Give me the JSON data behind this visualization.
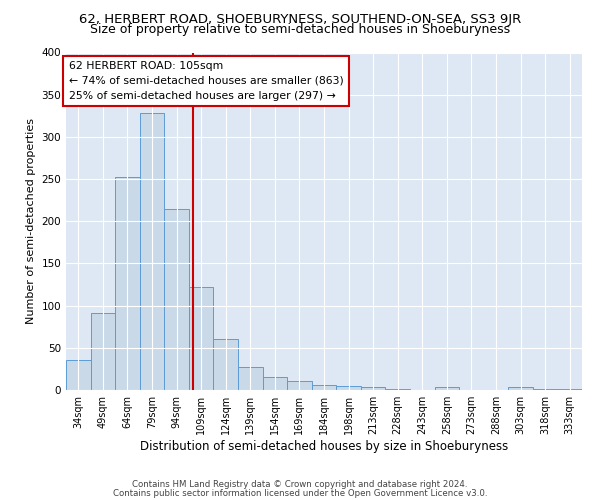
{
  "title_line1": "62, HERBERT ROAD, SHOEBURYNESS, SOUTHEND-ON-SEA, SS3 9JR",
  "title_line2": "Size of property relative to semi-detached houses in Shoeburyness",
  "xlabel": "Distribution of semi-detached houses by size in Shoeburyness",
  "ylabel": "Number of semi-detached properties",
  "footnote1": "Contains HM Land Registry data © Crown copyright and database right 2024.",
  "footnote2": "Contains public sector information licensed under the Open Government Licence v3.0.",
  "annotation_title": "62 HERBERT ROAD: 105sqm",
  "annotation_line2": "← 74% of semi-detached houses are smaller (863)",
  "annotation_line3": "25% of semi-detached houses are larger (297) →",
  "bar_labels": [
    "34sqm",
    "49sqm",
    "64sqm",
    "79sqm",
    "94sqm",
    "109sqm",
    "124sqm",
    "139sqm",
    "154sqm",
    "169sqm",
    "184sqm",
    "198sqm",
    "213sqm",
    "228sqm",
    "243sqm",
    "258sqm",
    "273sqm",
    "288sqm",
    "303sqm",
    "318sqm",
    "333sqm"
  ],
  "bar_values": [
    35,
    91,
    252,
    328,
    215,
    122,
    61,
    27,
    15,
    11,
    6,
    5,
    4,
    1,
    0,
    3,
    0,
    0,
    4,
    1,
    1
  ],
  "bar_color": "#c9d9e8",
  "bar_edge_color": "#5b9bd5",
  "vline_color": "#cc0000",
  "vline_x": 4.67,
  "annotation_box_color": "#cc0000",
  "annotation_fill": "#ffffff",
  "ylim": [
    0,
    400
  ],
  "yticks": [
    0,
    50,
    100,
    150,
    200,
    250,
    300,
    350,
    400
  ],
  "plot_bg_color": "#dde8f4",
  "fig_bg_color": "#ffffff",
  "grid_color": "#ffffff",
  "title1_fontsize": 9.5,
  "title2_fontsize": 9,
  "xlabel_fontsize": 8.5,
  "ylabel_fontsize": 8,
  "annotation_fontsize": 7.8,
  "tick_fontsize": 7,
  "ytick_fontsize": 7.5
}
